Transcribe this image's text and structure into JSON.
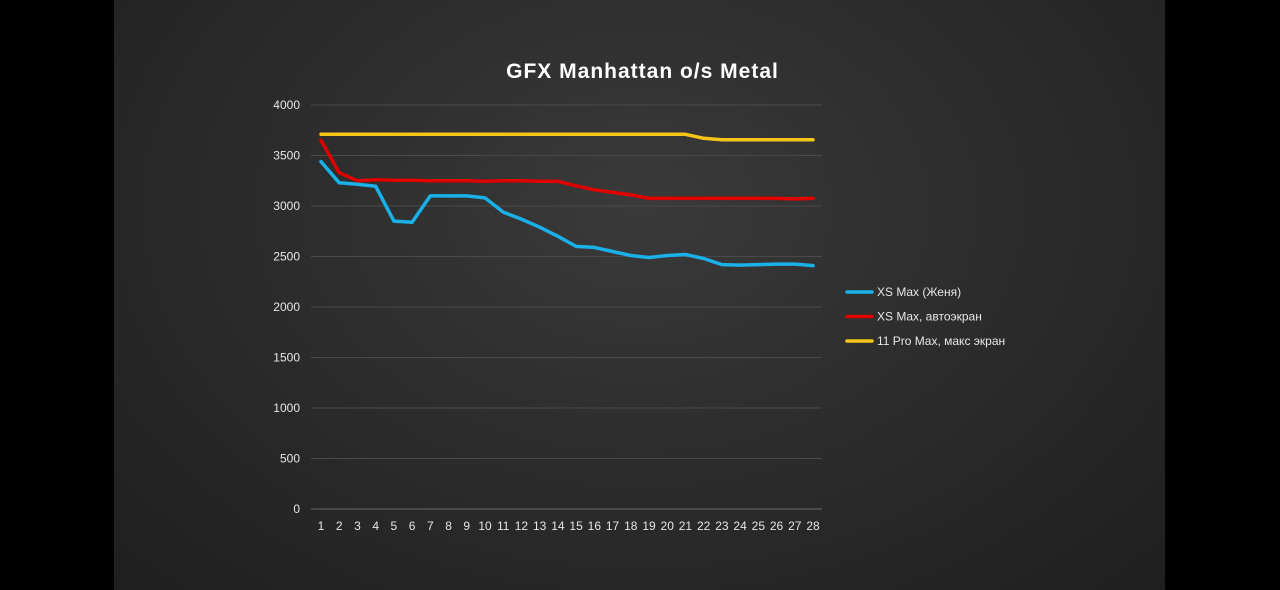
{
  "chart_data": {
    "type": "line",
    "title": "GFX Manhattan o/s Metal",
    "x": [
      1,
      2,
      3,
      4,
      5,
      6,
      7,
      8,
      9,
      10,
      11,
      12,
      13,
      14,
      15,
      16,
      17,
      18,
      19,
      20,
      21,
      22,
      23,
      24,
      25,
      26,
      27,
      28
    ],
    "ylim": [
      0,
      4000
    ],
    "yticks": [
      0,
      500,
      1000,
      1500,
      2000,
      2500,
      3000,
      3500,
      4000
    ],
    "grid": true,
    "legend_position": "right",
    "series": [
      {
        "name": "XS Max (Женя)",
        "color": "#1ab0e8",
        "values": [
          3440,
          3230,
          3215,
          3195,
          2850,
          2840,
          3100,
          3100,
          3100,
          3080,
          2940,
          2870,
          2790,
          2700,
          2600,
          2590,
          2550,
          2510,
          2490,
          2510,
          2520,
          2480,
          2420,
          2415,
          2420,
          2425,
          2425,
          2410
        ]
      },
      {
        "name": "XS Max, автоэкран",
        "color": "#e00000",
        "values": [
          3650,
          3330,
          3250,
          3260,
          3255,
          3255,
          3250,
          3250,
          3250,
          3245,
          3250,
          3250,
          3245,
          3245,
          3200,
          3160,
          3135,
          3110,
          3075,
          3075,
          3075,
          3075,
          3075,
          3075,
          3075,
          3075,
          3070,
          3075
        ]
      },
      {
        "name": "11 Pro Max, макс экран",
        "color": "#f5c518",
        "values": [
          3710,
          3710,
          3710,
          3710,
          3710,
          3710,
          3710,
          3710,
          3710,
          3710,
          3710,
          3710,
          3710,
          3710,
          3710,
          3710,
          3710,
          3710,
          3710,
          3710,
          3710,
          3670,
          3655,
          3655,
          3655,
          3655,
          3655,
          3655
        ]
      }
    ]
  }
}
